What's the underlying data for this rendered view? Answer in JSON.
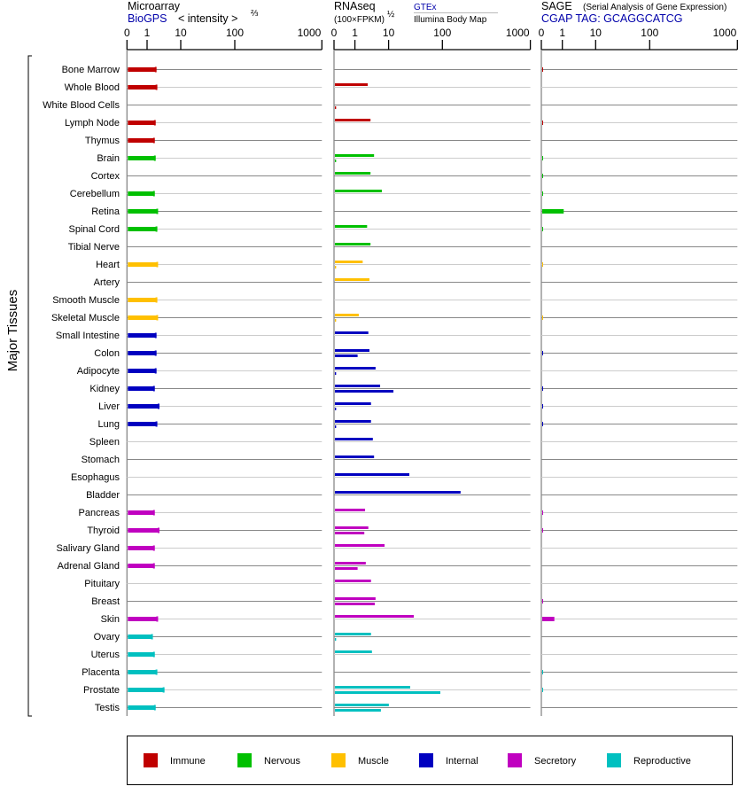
{
  "chart_data": {
    "type": "bar",
    "title": "Major Tissues",
    "ylabel": "Major Tissues",
    "panels": [
      {
        "key": "microarray",
        "title": "Microarray",
        "source": "BioGPS",
        "unit": "< intensity >",
        "unit_sup": "⅔",
        "ticks": [
          "0",
          "1",
          "10",
          "100",
          "1000"
        ],
        "xlim": [
          0,
          1000
        ]
      },
      {
        "key": "rnaseq",
        "title": "RNAseq",
        "unit": "(100×FPKM)",
        "unit_sup": "½",
        "series_top": "GTEx",
        "series_bottom": "Illumina Body Map",
        "ticks": [
          "0",
          "1",
          "10",
          "100",
          "1000"
        ],
        "xlim": [
          0,
          1000
        ]
      },
      {
        "key": "sage",
        "title": "SAGE",
        "subtitle": "(Serial Analysis of Gene Expression)",
        "source": "CGAP TAG: GCAGGCATCG",
        "ticks": [
          "0",
          "1",
          "10",
          "100",
          "1000"
        ],
        "xlim": [
          0,
          1000
        ]
      }
    ],
    "groups": [
      {
        "name": "Immune",
        "color": "#c00000"
      },
      {
        "name": "Nervous",
        "color": "#00c000"
      },
      {
        "name": "Muscle",
        "color": "#ffc000"
      },
      {
        "name": "Internal",
        "color": "#0000c0"
      },
      {
        "name": "Secretory",
        "color": "#c000c0"
      },
      {
        "name": "Reproductive",
        "color": "#00c0c0"
      }
    ],
    "tissues": [
      {
        "name": "Bone Marrow",
        "group": 0,
        "microarray": 1.8,
        "gtex": null,
        "illumina": null,
        "sage": 0.05
      },
      {
        "name": "Whole Blood",
        "group": 0,
        "microarray": 1.9,
        "gtex": 2.4,
        "illumina": null,
        "sage": null
      },
      {
        "name": "White Blood Cells",
        "group": 0,
        "microarray": null,
        "gtex": null,
        "illumina": 0.1,
        "sage": null
      },
      {
        "name": "Lymph Node",
        "group": 0,
        "microarray": 1.7,
        "gtex": 2.9,
        "illumina": null,
        "sage": 0.05
      },
      {
        "name": "Thymus",
        "group": 0,
        "microarray": 1.6,
        "gtex": null,
        "illumina": null,
        "sage": null
      },
      {
        "name": "Brain",
        "group": 1,
        "microarray": 1.7,
        "gtex": 3.7,
        "illumina": 0.1,
        "sage": 0.05
      },
      {
        "name": "Cortex",
        "group": 1,
        "microarray": null,
        "gtex": 2.9,
        "illumina": null,
        "sage": 0.05
      },
      {
        "name": "Cerebellum",
        "group": 1,
        "microarray": 1.6,
        "gtex": 6.3,
        "illumina": null,
        "sage": 0.05
      },
      {
        "name": "Retina",
        "group": 1,
        "microarray": 2.0,
        "gtex": null,
        "illumina": null,
        "sage": 1.1
      },
      {
        "name": "Spinal Cord",
        "group": 1,
        "microarray": 1.9,
        "gtex": 2.3,
        "illumina": null,
        "sage": 0.05
      },
      {
        "name": "Tibial Nerve",
        "group": 1,
        "microarray": null,
        "gtex": 2.9,
        "illumina": null,
        "sage": null
      },
      {
        "name": "Heart",
        "group": 2,
        "microarray": 2.0,
        "gtex": 1.7,
        "illumina": 0.1,
        "sage": 0.05
      },
      {
        "name": "Artery",
        "group": 2,
        "microarray": null,
        "gtex": 2.7,
        "illumina": null,
        "sage": null
      },
      {
        "name": "Smooth Muscle",
        "group": 2,
        "microarray": 1.9,
        "gtex": null,
        "illumina": null,
        "sage": null
      },
      {
        "name": "Skeletal Muscle",
        "group": 2,
        "microarray": 2.0,
        "gtex": 1.3,
        "illumina": 0.1,
        "sage": 0.05
      },
      {
        "name": "Small Intestine",
        "group": 3,
        "microarray": 1.8,
        "gtex": 2.5,
        "illumina": null,
        "sage": null
      },
      {
        "name": "Colon",
        "group": 3,
        "microarray": 1.8,
        "gtex": 2.7,
        "illumina": 1.2,
        "sage": 0.05
      },
      {
        "name": "Adipocyte",
        "group": 3,
        "microarray": 1.8,
        "gtex": 4.1,
        "illumina": 0.1,
        "sage": null
      },
      {
        "name": "Kidney",
        "group": 3,
        "microarray": 1.6,
        "gtex": 5.6,
        "illumina": 12.3,
        "sage": 0.05
      },
      {
        "name": "Liver",
        "group": 3,
        "microarray": 2.2,
        "gtex": 3.0,
        "illumina": 0.1,
        "sage": 0.05
      },
      {
        "name": "Lung",
        "group": 3,
        "microarray": 1.9,
        "gtex": 3.0,
        "illumina": 0.1,
        "sage": 0.05
      },
      {
        "name": "Spleen",
        "group": 3,
        "microarray": null,
        "gtex": 3.4,
        "illumina": null,
        "sage": null
      },
      {
        "name": "Stomach",
        "group": 3,
        "microarray": null,
        "gtex": 3.7,
        "illumina": null,
        "sage": null
      },
      {
        "name": "Esophagus",
        "group": 3,
        "microarray": null,
        "gtex": 24.3,
        "illumina": null,
        "sage": null
      },
      {
        "name": "Bladder",
        "group": 3,
        "microarray": null,
        "gtex": 161,
        "illumina": null,
        "sage": null
      },
      {
        "name": "Pancreas",
        "group": 4,
        "microarray": 1.6,
        "gtex": 2.0,
        "illumina": null,
        "sage": 0.05
      },
      {
        "name": "Thyroid",
        "group": 4,
        "microarray": 2.2,
        "gtex": 2.5,
        "illumina": 1.9,
        "sage": 0.05
      },
      {
        "name": "Salivary Gland",
        "group": 4,
        "microarray": 1.6,
        "gtex": 7.6,
        "illumina": null,
        "sage": null
      },
      {
        "name": "Adrenal Gland",
        "group": 4,
        "microarray": 1.6,
        "gtex": 2.1,
        "illumina": 1.2,
        "sage": null
      },
      {
        "name": "Pituitary",
        "group": 4,
        "microarray": null,
        "gtex": 3.0,
        "illumina": null,
        "sage": null
      },
      {
        "name": "Breast",
        "group": 4,
        "microarray": null,
        "gtex": 4.1,
        "illumina": 3.9,
        "sage": 0.05
      },
      {
        "name": "Skin",
        "group": 4,
        "microarray": 2.0,
        "gtex": 29.4,
        "illumina": null,
        "sage": 0.62
      },
      {
        "name": "Ovary",
        "group": 5,
        "microarray": 1.4,
        "gtex": 3.0,
        "illumina": 0.1,
        "sage": null
      },
      {
        "name": "Uterus",
        "group": 5,
        "microarray": 1.6,
        "gtex": 3.2,
        "illumina": null,
        "sage": null
      },
      {
        "name": "Placenta",
        "group": 5,
        "microarray": 1.9,
        "gtex": null,
        "illumina": null,
        "sage": 0.05
      },
      {
        "name": "Prostate",
        "group": 5,
        "microarray": 3.1,
        "gtex": 25.2,
        "illumina": 91.6,
        "sage": 0.05
      },
      {
        "name": "Testis",
        "group": 5,
        "microarray": 1.7,
        "gtex": 10.1,
        "illumina": 5.9,
        "sage": null
      }
    ]
  }
}
